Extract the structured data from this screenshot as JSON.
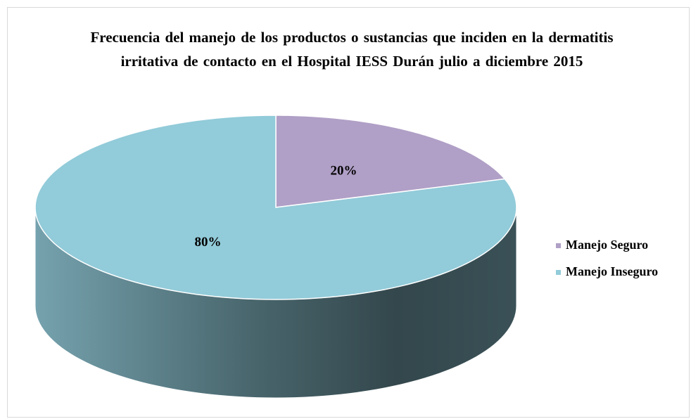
{
  "chart_data": {
    "type": "pie3d",
    "title": "Frecuencia del manejo de los productos o sustancias que inciden en la dermatitis irritativa de contacto en el Hospital IESS Durán julio a diciembre 2015",
    "categories": [
      "Manejo Seguro",
      "Manejo Inseguro"
    ],
    "values": [
      20,
      80
    ],
    "value_labels": [
      "20%",
      "80%"
    ],
    "colors": [
      "#b09fc6",
      "#92cbd9"
    ],
    "legend": "right"
  }
}
